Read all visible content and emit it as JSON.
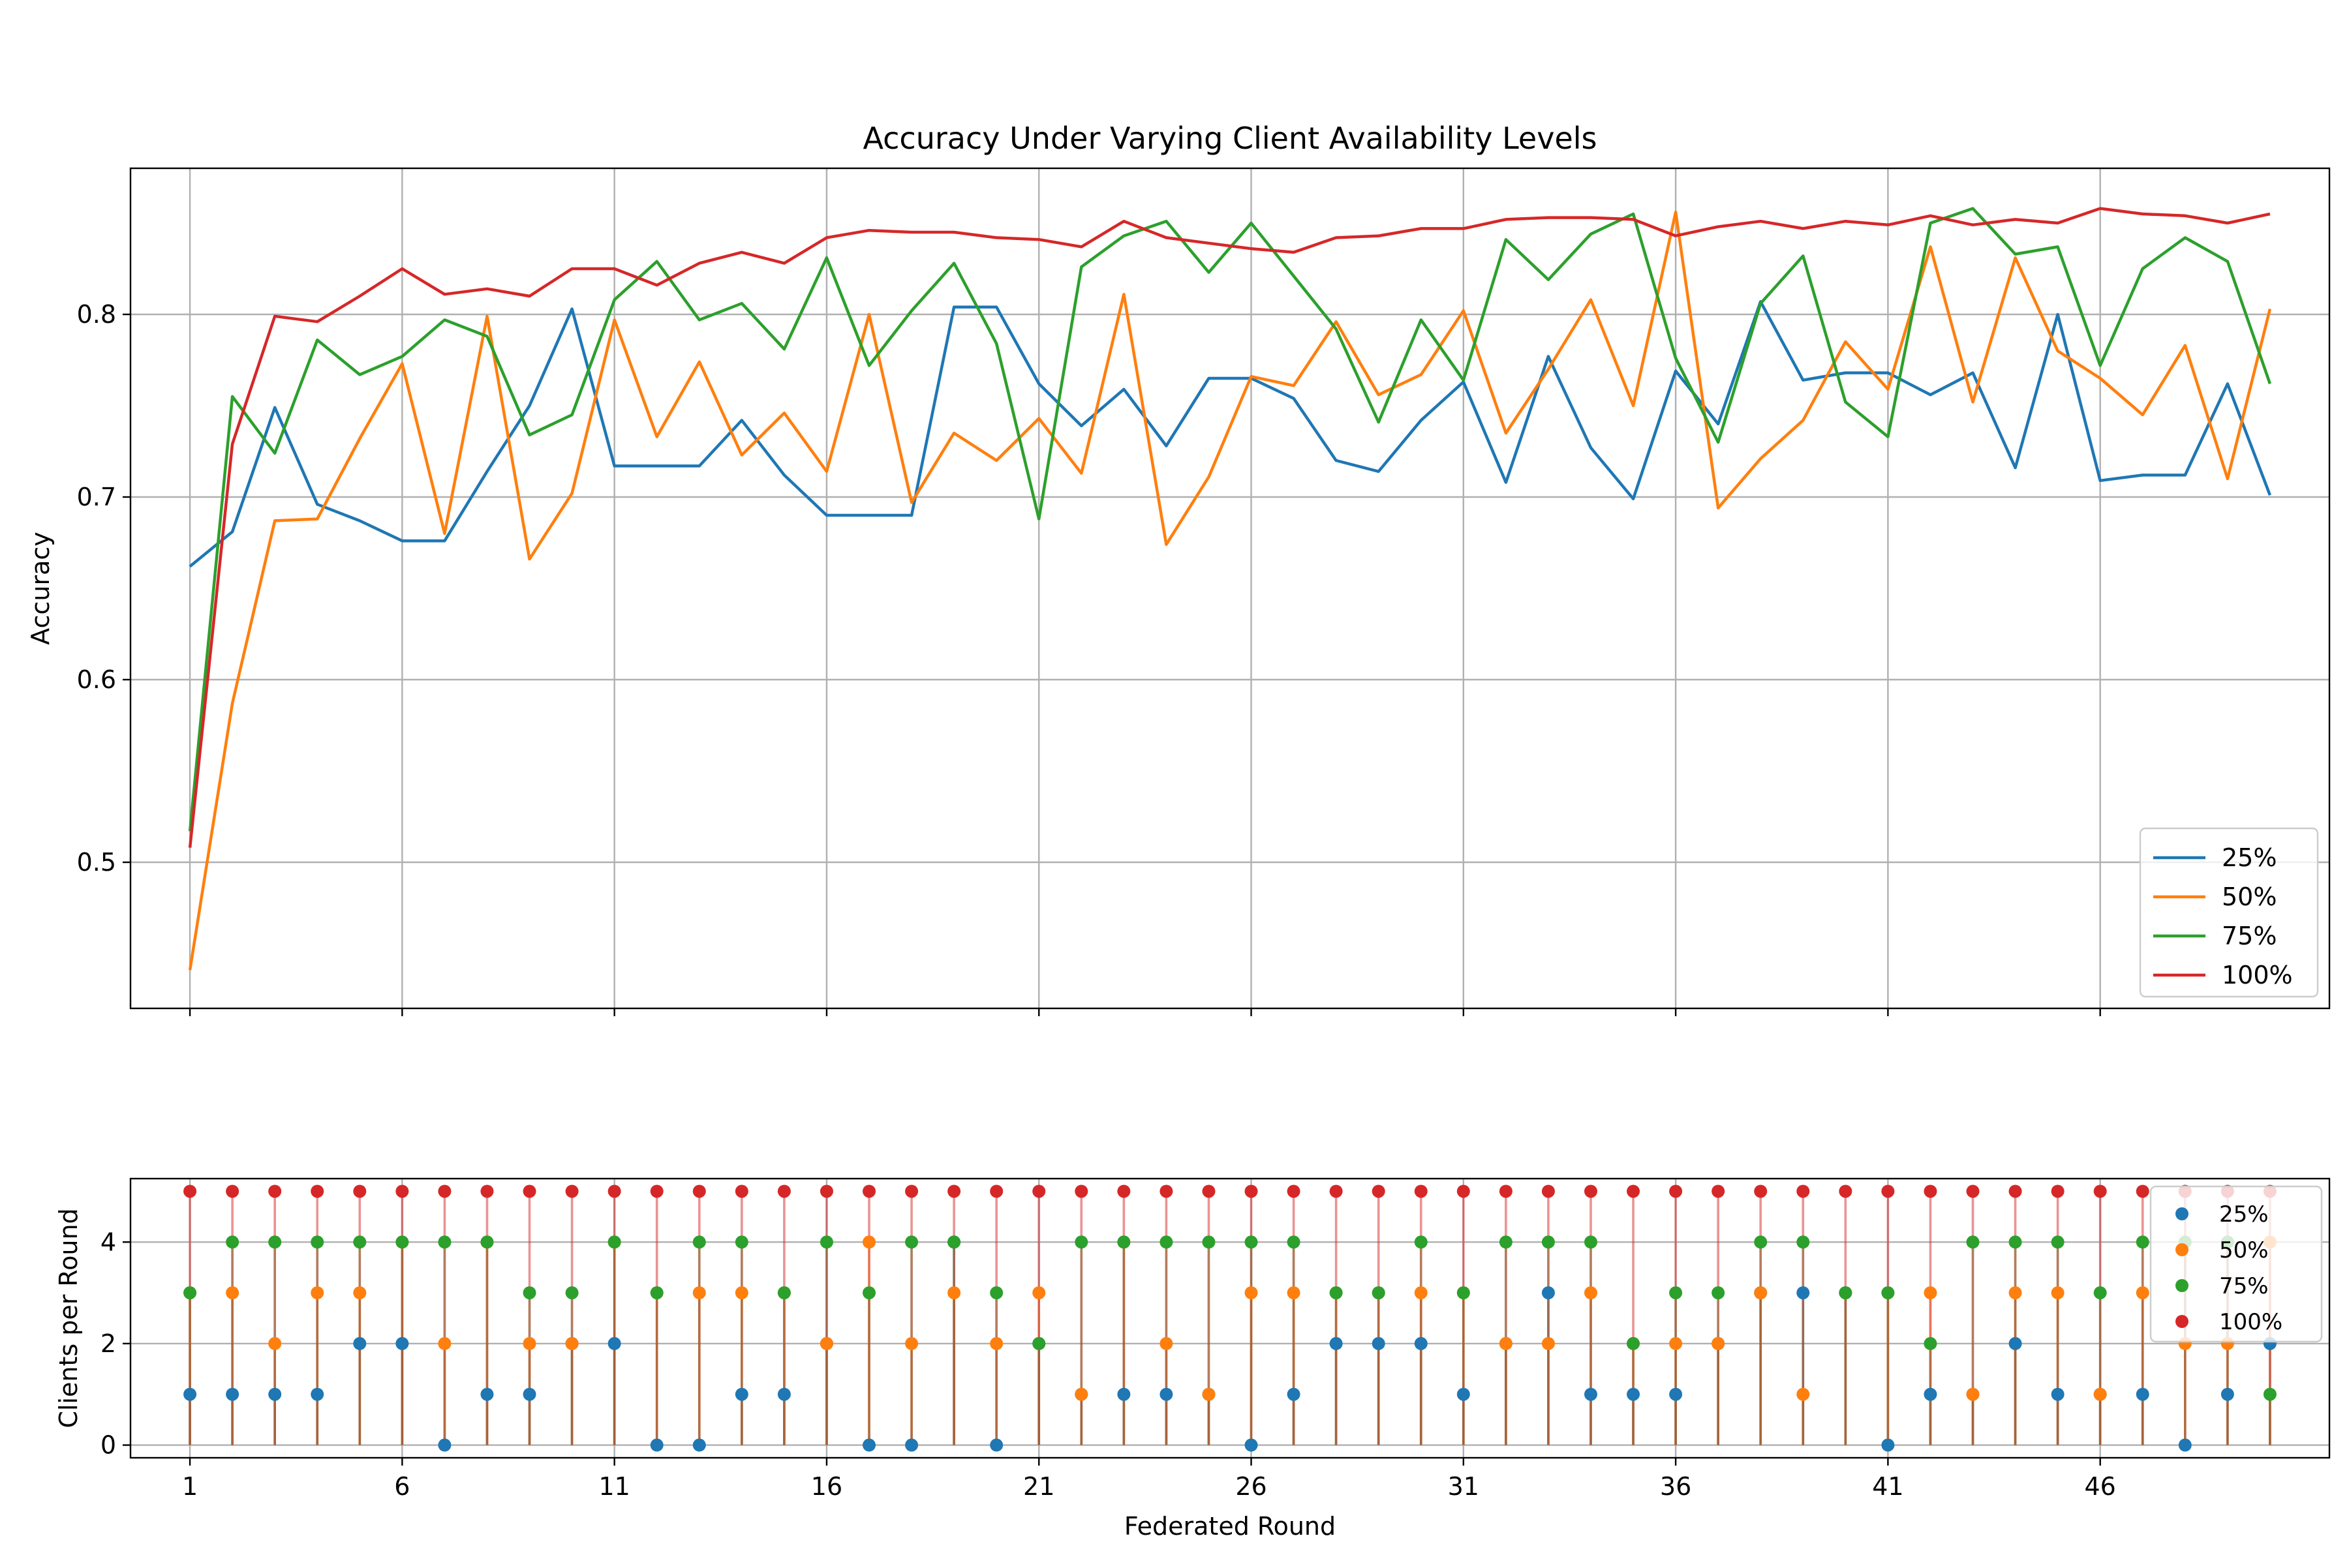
{
  "chart_data": [
    {
      "type": "line",
      "title": "Accuracy Under Varying Client Availability Levels",
      "xlabel": "",
      "ylabel": "Accuracy",
      "x": [
        1,
        2,
        3,
        4,
        5,
        6,
        7,
        8,
        9,
        10,
        11,
        12,
        13,
        14,
        15,
        16,
        17,
        18,
        19,
        20,
        21,
        22,
        23,
        24,
        25,
        26,
        27,
        28,
        29,
        30,
        31,
        32,
        33,
        34,
        35,
        36,
        37,
        38,
        39,
        40,
        41,
        42,
        43,
        44,
        45,
        46,
        47,
        48,
        49,
        50
      ],
      "xlim": [
        -0.4,
        51.4
      ],
      "ylim": [
        0.42,
        0.88
      ],
      "yticks": [
        0.5,
        0.6,
        0.7,
        0.8
      ],
      "ytick_labels": [
        "0.5",
        "0.6",
        "0.7",
        "0.8"
      ],
      "grid": true,
      "legend": {
        "position": "lower-right"
      },
      "series": [
        {
          "name": "25%",
          "color": "#1f77b4",
          "values": [
            0.662,
            0.681,
            0.749,
            0.696,
            0.687,
            0.676,
            0.676,
            0.714,
            0.75,
            0.803,
            0.717,
            0.717,
            0.717,
            0.742,
            0.712,
            0.69,
            0.69,
            0.69,
            0.804,
            0.804,
            0.762,
            0.739,
            0.759,
            0.728,
            0.765,
            0.765,
            0.754,
            0.72,
            0.714,
            0.742,
            0.763,
            0.708,
            0.777,
            0.727,
            0.699,
            0.769,
            0.74,
            0.807,
            0.764,
            0.768,
            0.768,
            0.756,
            0.768,
            0.716,
            0.8,
            0.709,
            0.712,
            0.712,
            0.762,
            0.701
          ]
        },
        {
          "name": "50%",
          "color": "#ff7f0e",
          "values": [
            0.441,
            0.587,
            0.687,
            0.688,
            0.732,
            0.773,
            0.68,
            0.799,
            0.666,
            0.702,
            0.797,
            0.733,
            0.774,
            0.723,
            0.746,
            0.714,
            0.8,
            0.697,
            0.735,
            0.72,
            0.743,
            0.713,
            0.811,
            0.674,
            0.711,
            0.766,
            0.761,
            0.796,
            0.756,
            0.767,
            0.802,
            0.735,
            0.77,
            0.808,
            0.75,
            0.856,
            0.694,
            0.721,
            0.742,
            0.785,
            0.759,
            0.837,
            0.752,
            0.831,
            0.78,
            0.765,
            0.745,
            0.783,
            0.71,
            0.803
          ]
        },
        {
          "name": "75%",
          "color": "#2ca02c",
          "values": [
            0.517,
            0.755,
            0.724,
            0.786,
            0.767,
            0.777,
            0.797,
            0.788,
            0.734,
            0.745,
            0.808,
            0.829,
            0.797,
            0.806,
            0.781,
            0.831,
            0.772,
            0.802,
            0.828,
            0.784,
            0.688,
            0.826,
            0.843,
            0.851,
            0.823,
            0.85,
            0.821,
            0.792,
            0.741,
            0.797,
            0.764,
            0.841,
            0.819,
            0.844,
            0.855,
            0.776,
            0.73,
            0.806,
            0.832,
            0.752,
            0.733,
            0.85,
            0.858,
            0.833,
            0.837,
            0.772,
            0.825,
            0.842,
            0.829,
            0.762
          ]
        },
        {
          "name": "100%",
          "color": "#d62728",
          "values": [
            0.508,
            0.729,
            0.799,
            0.796,
            0.81,
            0.825,
            0.811,
            0.814,
            0.81,
            0.825,
            0.825,
            0.816,
            0.828,
            0.834,
            0.828,
            0.842,
            0.846,
            0.845,
            0.845,
            0.842,
            0.841,
            0.837,
            0.851,
            0.842,
            0.839,
            0.836,
            0.834,
            0.842,
            0.843,
            0.847,
            0.847,
            0.852,
            0.853,
            0.853,
            0.852,
            0.843,
            0.848,
            0.851,
            0.847,
            0.851,
            0.849,
            0.854,
            0.849,
            0.852,
            0.85,
            0.858,
            0.855,
            0.854,
            0.85,
            0.855
          ]
        }
      ]
    },
    {
      "type": "scatter",
      "title": "",
      "xlabel": "Federated Round",
      "ylabel": "Clients per Round",
      "x": [
        1,
        2,
        3,
        4,
        5,
        6,
        7,
        8,
        9,
        10,
        11,
        12,
        13,
        14,
        15,
        16,
        17,
        18,
        19,
        20,
        21,
        22,
        23,
        24,
        25,
        26,
        27,
        28,
        29,
        30,
        31,
        32,
        33,
        34,
        35,
        36,
        37,
        38,
        39,
        40,
        41,
        42,
        43,
        44,
        45,
        46,
        47,
        48,
        49,
        50
      ],
      "xlim": [
        -0.4,
        51.4
      ],
      "ylim": [
        -0.25,
        5.25
      ],
      "xticks": [
        1,
        6,
        11,
        16,
        21,
        26,
        31,
        36,
        41,
        46
      ],
      "xtick_labels": [
        "1",
        "6",
        "11",
        "16",
        "21",
        "26",
        "31",
        "36",
        "41",
        "46"
      ],
      "yticks": [
        0,
        2,
        4
      ],
      "ytick_labels": [
        "0",
        "2",
        "4"
      ],
      "grid": true,
      "stem_lines": true,
      "legend": {
        "position": "upper-right"
      },
      "series": [
        {
          "name": "25%",
          "color": "#1f77b4",
          "values": [
            1,
            1,
            1,
            1,
            2,
            2,
            0,
            1,
            1,
            2,
            2,
            0,
            0,
            1,
            1,
            2,
            0,
            0,
            4,
            0,
            2,
            1,
            1,
            1,
            1,
            0,
            1,
            2,
            2,
            2,
            1,
            2,
            3,
            1,
            1,
            1,
            2,
            3,
            3,
            3,
            0,
            1,
            1,
            2,
            1,
            1,
            1,
            0,
            1,
            2
          ]
        },
        {
          "name": "50%",
          "color": "#ff7f0e",
          "values": [
            3,
            3,
            2,
            3,
            3,
            4,
            2,
            4,
            2,
            2,
            4,
            3,
            3,
            3,
            3,
            2,
            4,
            2,
            3,
            2,
            3,
            1,
            4,
            2,
            1,
            3,
            3,
            3,
            3,
            3,
            3,
            2,
            2,
            3,
            2,
            2,
            2,
            3,
            1,
            3,
            3,
            3,
            1,
            3,
            3,
            1,
            3,
            2,
            2,
            4
          ]
        },
        {
          "name": "75%",
          "color": "#2ca02c",
          "values": [
            3,
            4,
            4,
            4,
            4,
            4,
            4,
            4,
            3,
            3,
            4,
            3,
            4,
            4,
            3,
            4,
            3,
            4,
            4,
            3,
            2,
            4,
            4,
            4,
            4,
            4,
            4,
            3,
            3,
            4,
            3,
            4,
            4,
            4,
            2,
            3,
            3,
            4,
            4,
            3,
            3,
            2,
            4,
            4,
            4,
            3,
            4,
            4,
            4,
            1
          ]
        },
        {
          "name": "100%",
          "color": "#d62728",
          "values": [
            5,
            5,
            5,
            5,
            5,
            5,
            5,
            5,
            5,
            5,
            5,
            5,
            5,
            5,
            5,
            5,
            5,
            5,
            5,
            5,
            5,
            5,
            5,
            5,
            5,
            5,
            5,
            5,
            5,
            5,
            5,
            5,
            5,
            5,
            5,
            5,
            5,
            5,
            5,
            5,
            5,
            5,
            5,
            5,
            5,
            5,
            5,
            5,
            5,
            5
          ]
        }
      ]
    }
  ]
}
